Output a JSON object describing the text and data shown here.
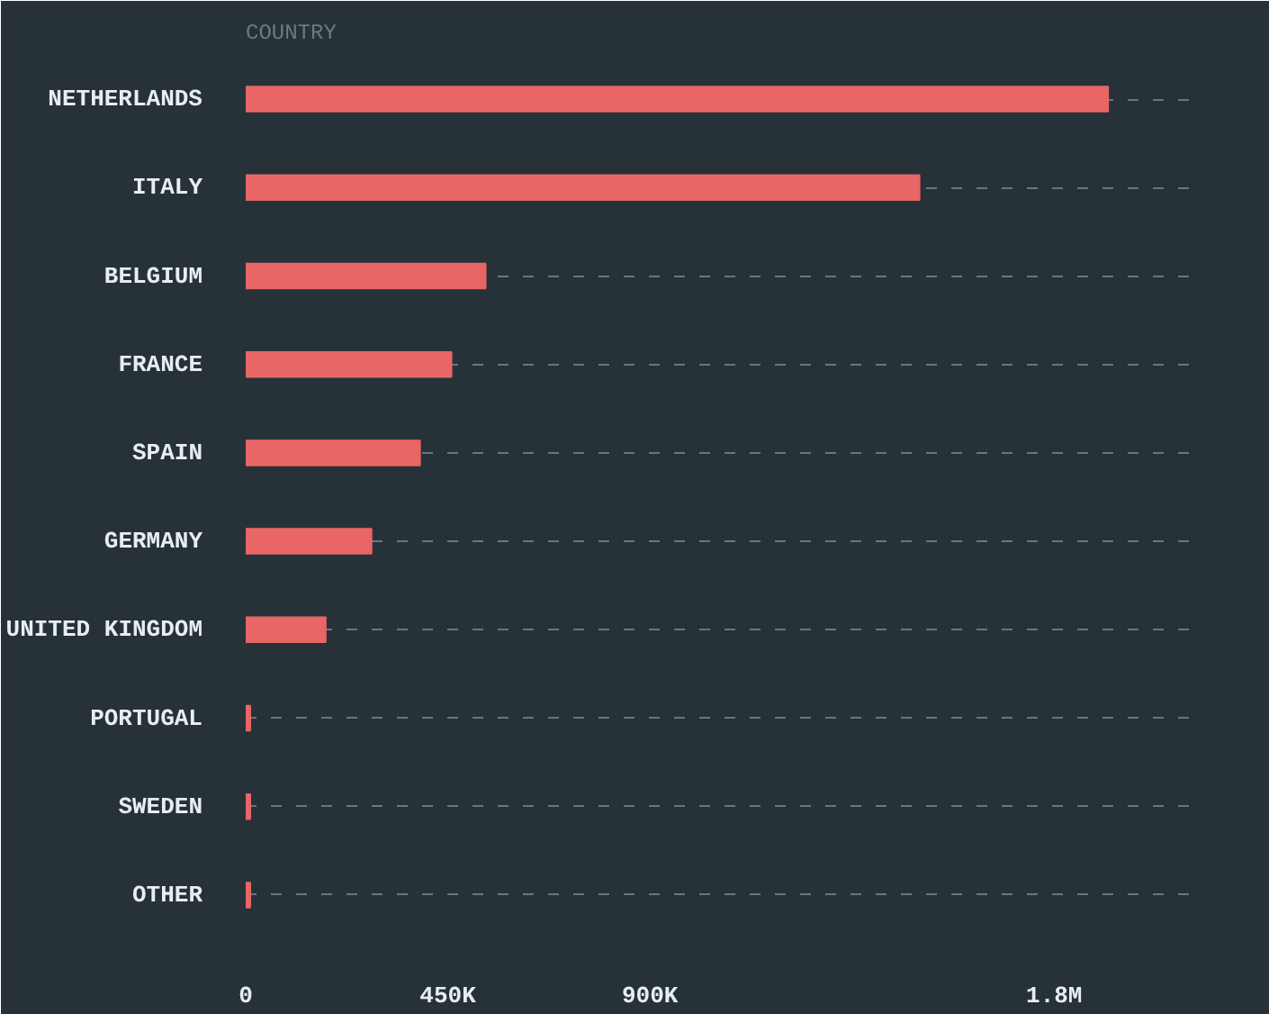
{
  "chart_data": {
    "type": "bar",
    "orientation": "horizontal",
    "title": "COUNTRY",
    "categories": [
      "NETHERLANDS",
      "ITALY",
      "BELGIUM",
      "FRANCE",
      "SPAIN",
      "GERMANY",
      "UNITED KINGDOM",
      "PORTUGAL",
      "SWEDEN",
      "OTHER"
    ],
    "values": [
      1920000,
      1500000,
      534000,
      458000,
      388000,
      280000,
      178000,
      10000,
      10000,
      10000
    ],
    "color": "#e86666",
    "xlim": [
      0,
      2100000
    ],
    "xticks": [
      0,
      {
        "value": 450000,
        "label": "450K"
      },
      {
        "value": 900000,
        "label": "900K"
      },
      {
        "value": 1800000,
        "label": "1.8M"
      }
    ],
    "grid": "y"
  }
}
